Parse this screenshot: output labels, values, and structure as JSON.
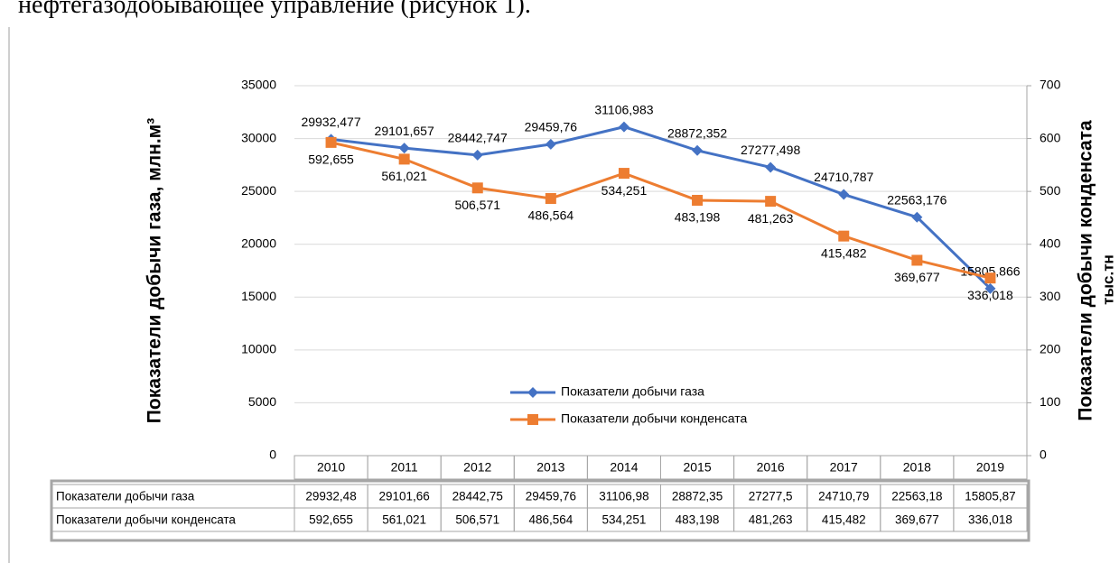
{
  "page_text": "нефтегазодобывающее управление (рисунок 1).",
  "chart_data": {
    "type": "line",
    "y_axis_label": "Показатели добычи газа,  млн.м³",
    "y2_axis_label": [
      "Показатели  добычи конденсата",
      "тыс.тн"
    ],
    "categories": [
      "2010",
      "2011",
      "2012",
      "2013",
      "2014",
      "2015",
      "2016",
      "2017",
      "2018",
      "2019"
    ],
    "series": [
      {
        "name": "Показатели добычи газа",
        "color": "#4472c4",
        "marker": "diamond",
        "values": [
          29932.477,
          29101.657,
          28442.747,
          29459.76,
          31106.983,
          28872.352,
          27277.498,
          24710.787,
          22563.176,
          15805.866
        ],
        "value_labels": [
          "29932,477",
          "29101,657",
          "28442,747",
          "29459,76",
          "31106,983",
          "28872,352",
          "27277,498",
          "24710,787",
          "22563,176",
          "15805,866"
        ]
      },
      {
        "name": "Показатели добычи конденсата",
        "color": "#ed7d31",
        "marker": "square",
        "axis": "y2",
        "values": [
          592.655,
          561.021,
          506.571,
          486.564,
          534.251,
          483.198,
          481.263,
          415.482,
          369.677,
          336.018
        ],
        "value_labels": [
          "592,655",
          "561,021",
          "506,571",
          "486,564",
          "534,251",
          "483,198",
          "481,263",
          "415,482",
          "369,677",
          "336,018"
        ]
      }
    ],
    "ylim": [
      0,
      35000
    ],
    "yticks": [
      0,
      5000,
      10000,
      15000,
      20000,
      25000,
      30000,
      35000
    ],
    "y2lim": [
      0,
      700
    ],
    "y2ticks": [
      0,
      100,
      200,
      300,
      400,
      500,
      600,
      700
    ],
    "grid": true,
    "table": {
      "rows": [
        {
          "name": "Показатели добычи газа",
          "cells": [
            "29932,48",
            "29101,66",
            "28442,75",
            "29459,76",
            "31106,98",
            "28872,35",
            "27277,5",
            "24710,79",
            "22563,18",
            "15805,87"
          ]
        },
        {
          "name": "Показатели добычи конденсата",
          "cells": [
            "592,655",
            "561,021",
            "506,571",
            "486,564",
            "534,251",
            "483,198",
            "481,263",
            "415,482",
            "369,677",
            "336,018"
          ]
        }
      ]
    }
  }
}
